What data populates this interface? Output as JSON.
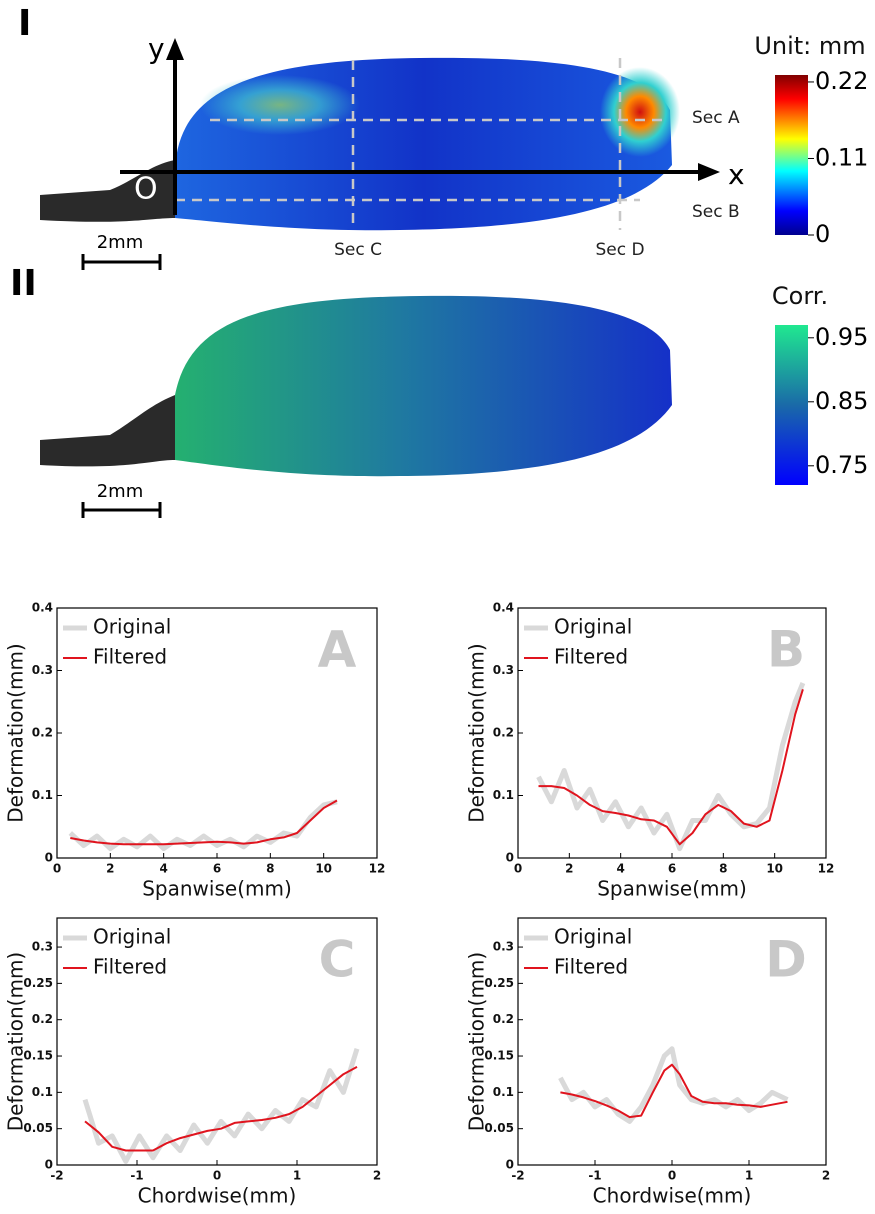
{
  "panels": [
    {
      "label": "I",
      "axis_y": "y",
      "axis_x": "x",
      "origin": "O",
      "scale_bar": "2mm",
      "sections": [
        "Sec A",
        "Sec B",
        "Sec C",
        "Sec D"
      ],
      "colorbar": {
        "title": "Unit: mm",
        "lim": [
          0,
          0.23
        ],
        "ticks": [
          0,
          0.11,
          0.22
        ]
      }
    },
    {
      "label": "II",
      "scale_bar": "2mm",
      "colorbar": {
        "title": "Corr.",
        "lim": [
          0.72,
          0.97
        ],
        "ticks": [
          0.75,
          0.85,
          0.95
        ]
      }
    }
  ],
  "chart_data": [
    {
      "type": "line",
      "label": "A",
      "xlabel": "Spanwise(mm)",
      "ylabel": "Deformation(mm)",
      "xlim": [
        0,
        12
      ],
      "ylim": [
        0,
        0.4
      ],
      "xticks": [
        0,
        2,
        4,
        6,
        8,
        10,
        12
      ],
      "yticks": [
        0,
        0.1,
        0.2,
        0.3,
        0.4
      ],
      "x": [
        0.5,
        1,
        1.5,
        2,
        2.5,
        3,
        3.5,
        4,
        4.5,
        5,
        5.5,
        6,
        6.5,
        7,
        7.5,
        8,
        8.5,
        9,
        9.5,
        10,
        10.5
      ],
      "series": [
        {
          "name": "Original",
          "color": "#d9d9d9",
          "values": [
            0.04,
            0.02,
            0.035,
            0.015,
            0.03,
            0.018,
            0.035,
            0.015,
            0.03,
            0.02,
            0.035,
            0.02,
            0.03,
            0.018,
            0.035,
            0.025,
            0.04,
            0.035,
            0.065,
            0.085,
            0.09
          ]
        },
        {
          "name": "Filtered",
          "color": "#e0141e",
          "values": [
            0.032,
            0.028,
            0.025,
            0.023,
            0.022,
            0.022,
            0.022,
            0.022,
            0.023,
            0.024,
            0.025,
            0.026,
            0.025,
            0.023,
            0.025,
            0.03,
            0.033,
            0.04,
            0.06,
            0.08,
            0.092
          ]
        }
      ]
    },
    {
      "type": "line",
      "label": "B",
      "xlabel": "Spanwise(mm)",
      "ylabel": "Deformation(mm)",
      "xlim": [
        0,
        12
      ],
      "ylim": [
        0,
        0.4
      ],
      "xticks": [
        0,
        2,
        4,
        6,
        8,
        10,
        12
      ],
      "yticks": [
        0,
        0.1,
        0.2,
        0.3,
        0.4
      ],
      "x": [
        0.8,
        1.3,
        1.8,
        2.3,
        2.8,
        3.3,
        3.8,
        4.3,
        4.8,
        5.3,
        5.8,
        6.3,
        6.8,
        7.3,
        7.8,
        8.3,
        8.8,
        9.3,
        9.8,
        10.3,
        10.8,
        11.1
      ],
      "series": [
        {
          "name": "Original",
          "color": "#d9d9d9",
          "values": [
            0.13,
            0.09,
            0.14,
            0.08,
            0.11,
            0.06,
            0.09,
            0.05,
            0.08,
            0.04,
            0.07,
            0.015,
            0.06,
            0.06,
            0.1,
            0.07,
            0.05,
            0.055,
            0.08,
            0.18,
            0.25,
            0.28
          ]
        },
        {
          "name": "Filtered",
          "color": "#e0141e",
          "values": [
            0.115,
            0.115,
            0.112,
            0.1,
            0.085,
            0.075,
            0.072,
            0.068,
            0.062,
            0.06,
            0.05,
            0.022,
            0.04,
            0.07,
            0.085,
            0.075,
            0.055,
            0.05,
            0.06,
            0.14,
            0.23,
            0.27
          ]
        }
      ]
    },
    {
      "type": "line",
      "label": "C",
      "xlabel": "Chordwise(mm)",
      "ylabel": "Deformation(mm)",
      "xlim": [
        -2,
        2
      ],
      "ylim": [
        0,
        0.34
      ],
      "xticks": [
        -2,
        -1,
        0,
        1,
        2
      ],
      "yticks": [
        0,
        0.05,
        0.1,
        0.15,
        0.2,
        0.25,
        0.3
      ],
      "x": [
        -1.65,
        -1.48,
        -1.31,
        -1.14,
        -0.97,
        -0.8,
        -0.63,
        -0.46,
        -0.29,
        -0.12,
        0.05,
        0.22,
        0.39,
        0.56,
        0.73,
        0.9,
        1.07,
        1.24,
        1.41,
        1.58,
        1.75
      ],
      "series": [
        {
          "name": "Original",
          "color": "#d9d9d9",
          "values": [
            0.09,
            0.03,
            0.04,
            0.005,
            0.04,
            0.01,
            0.04,
            0.02,
            0.055,
            0.03,
            0.06,
            0.04,
            0.07,
            0.05,
            0.075,
            0.06,
            0.09,
            0.08,
            0.13,
            0.1,
            0.16
          ]
        },
        {
          "name": "Filtered",
          "color": "#e0141e",
          "values": [
            0.06,
            0.045,
            0.025,
            0.02,
            0.02,
            0.02,
            0.03,
            0.037,
            0.042,
            0.047,
            0.05,
            0.058,
            0.06,
            0.062,
            0.065,
            0.07,
            0.08,
            0.095,
            0.11,
            0.125,
            0.135
          ]
        }
      ]
    },
    {
      "type": "line",
      "label": "D",
      "xlabel": "Chordwise(mm)",
      "ylabel": "Deformation(mm)",
      "xlim": [
        -2,
        2
      ],
      "ylim": [
        0,
        0.34
      ],
      "xticks": [
        -2,
        -1,
        0,
        1,
        2
      ],
      "yticks": [
        0,
        0.05,
        0.1,
        0.15,
        0.2,
        0.25,
        0.3
      ],
      "x": [
        -1.45,
        -1.3,
        -1.15,
        -1,
        -0.85,
        -0.7,
        -0.55,
        -0.4,
        -0.25,
        -0.1,
        0,
        0.1,
        0.25,
        0.4,
        0.55,
        0.7,
        0.85,
        1,
        1.15,
        1.3,
        1.5
      ],
      "series": [
        {
          "name": "Original",
          "color": "#d9d9d9",
          "values": [
            0.12,
            0.09,
            0.1,
            0.08,
            0.09,
            0.07,
            0.06,
            0.08,
            0.11,
            0.15,
            0.16,
            0.11,
            0.09,
            0.085,
            0.09,
            0.08,
            0.09,
            0.075,
            0.085,
            0.1,
            0.09
          ]
        },
        {
          "name": "Filtered",
          "color": "#e0141e",
          "values": [
            0.1,
            0.097,
            0.093,
            0.088,
            0.082,
            0.075,
            0.066,
            0.068,
            0.1,
            0.13,
            0.138,
            0.125,
            0.095,
            0.087,
            0.085,
            0.085,
            0.083,
            0.082,
            0.08,
            0.083,
            0.087
          ]
        }
      ]
    }
  ]
}
